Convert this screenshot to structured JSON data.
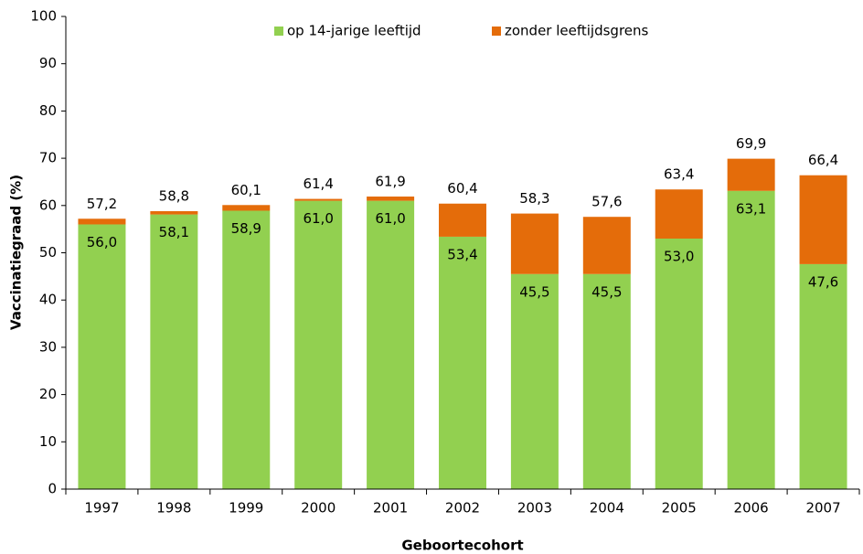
{
  "chart_data": {
    "type": "stacked_bar",
    "xlabel": "Geboortecohort",
    "ylabel": "Vaccinatiegraad (%)",
    "categories": [
      "1997",
      "1998",
      "1999",
      "2000",
      "2001",
      "2002",
      "2003",
      "2004",
      "2005",
      "2006",
      "2007"
    ],
    "series": [
      {
        "name": "op 14-jarige leeftijd",
        "color": "#92d050",
        "values": [
          56.0,
          58.1,
          58.9,
          61.0,
          61.0,
          53.4,
          45.5,
          45.5,
          53.0,
          63.1,
          47.6
        ],
        "value_labels": [
          "56,0",
          "58,1",
          "58,9",
          "61,0",
          "61,0",
          "53,4",
          "45,5",
          "45,5",
          "53,0",
          "63,1",
          "47,6"
        ]
      },
      {
        "name": "zonder leeftijdsgrens",
        "color": "#e46c0a",
        "values": [
          1.2,
          0.7,
          1.2,
          0.4,
          0.9,
          7.0,
          12.8,
          12.1,
          10.4,
          6.8,
          18.8
        ]
      }
    ],
    "total_labels": [
      "57,2",
      "58,8",
      "60,1",
      "61,4",
      "61,9",
      "60,4",
      "58,3",
      "57,6",
      "63,4",
      "69,9",
      "66,4"
    ],
    "ylim": [
      0,
      100
    ],
    "yticks": [
      0,
      10,
      20,
      30,
      40,
      50,
      60,
      70,
      80,
      90,
      100
    ],
    "grid": false,
    "legend": "top"
  }
}
